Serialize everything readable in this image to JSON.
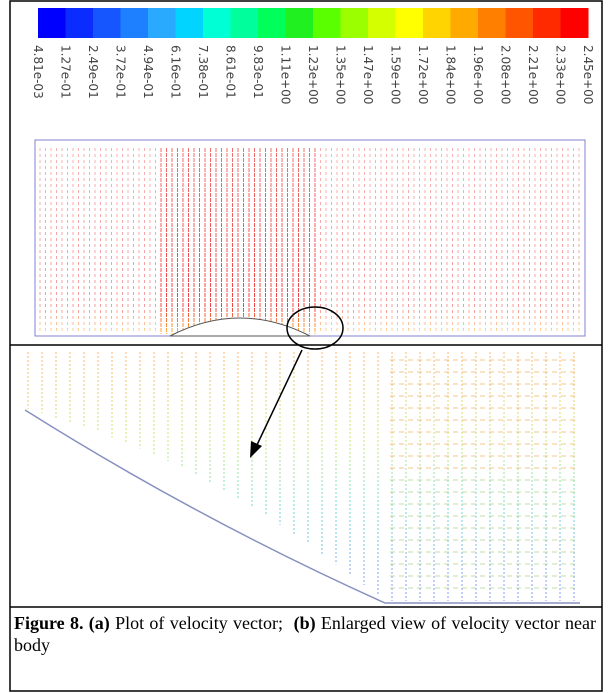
{
  "colorbar": {
    "colors": [
      "#0000ff",
      "#0a2cff",
      "#1556ff",
      "#1f80ff",
      "#2aaaff",
      "#00d4ff",
      "#00ffd4",
      "#00ff9c",
      "#00ff5a",
      "#20f020",
      "#5aff00",
      "#9cff00",
      "#d4ff00",
      "#ffff00",
      "#ffd400",
      "#ffaa00",
      "#ff8000",
      "#ff5500",
      "#ff2a00",
      "#ff0000"
    ],
    "labels": [
      "4.81e-03",
      "1.27e-01",
      "2.49e-01",
      "3.72e-01",
      "4.94e-01",
      "6.16e-01",
      "7.38e-01",
      "8.61e-01",
      "9.83e-01",
      "1.11e+00",
      "1.23e+00",
      "1.35e+00",
      "1.47e+00",
      "1.59e+00",
      "1.72e+00",
      "1.84e+00",
      "1.96e+00",
      "2.08e+00",
      "2.21e+00",
      "2.33e+00",
      "2.45e+00"
    ]
  },
  "caption": {
    "label": "Figure 8.",
    "part_a": "(a)",
    "text_a": "Plot of velocity vector;",
    "part_b": "(b)",
    "text_b": "Enlarged view of velocity vector near body"
  }
}
